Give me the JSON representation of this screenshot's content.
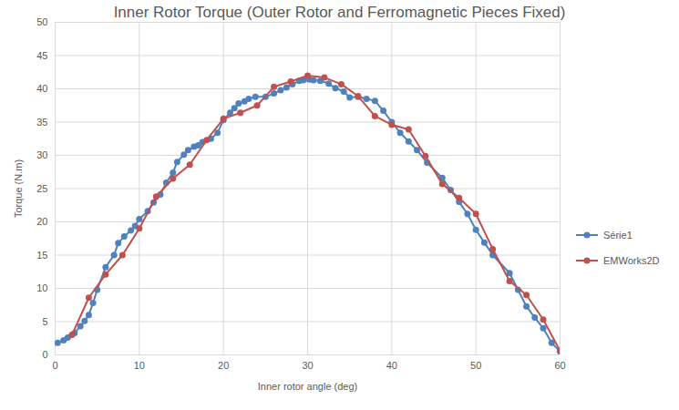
{
  "chart_data": {
    "type": "line",
    "title": "Inner Rotor Torque (Outer Rotor and Ferromagnetic Pieces Fixed)",
    "x_label": "Inner rotor angle (deg)",
    "y_label": "Torque (N.m)",
    "xlim": [
      0,
      60
    ],
    "xticks": [
      0,
      10,
      20,
      30,
      40,
      50,
      60
    ],
    "ylim": [
      0,
      50
    ],
    "yticks": [
      0,
      5,
      10,
      15,
      20,
      25,
      30,
      35,
      40,
      45,
      50
    ],
    "grid": true,
    "legend": "right",
    "series": [
      {
        "name": "Série1",
        "color": "#4f81bd",
        "marker": "circle",
        "x": [
          0.3,
          1,
          1.5,
          2.3,
          3,
          3.5,
          4,
          4.5,
          5,
          6,
          7,
          7.5,
          8.2,
          9,
          9.5,
          10,
          11,
          11.7,
          12.5,
          13.2,
          14,
          14.5,
          15.3,
          15.8,
          16.5,
          17,
          17.5,
          18.5,
          19.3,
          20,
          20.8,
          21.3,
          21.8,
          22.5,
          23,
          23.8,
          25,
          26,
          26.8,
          27.5,
          28.2,
          29,
          29.5,
          30.2,
          30.7,
          31.5,
          32.5,
          33.3,
          34.3,
          35,
          36,
          37,
          38,
          39,
          40,
          41,
          42,
          43,
          44.2,
          46,
          47,
          48,
          49,
          50,
          51,
          52,
          54,
          55,
          56,
          57,
          58,
          59,
          60
        ],
        "values": [
          1.8,
          2.2,
          2.6,
          3.3,
          4.3,
          5.1,
          6.0,
          7.8,
          9.8,
          13.2,
          15.0,
          16.8,
          17.8,
          18.7,
          19.4,
          20.4,
          21.6,
          22.9,
          24.1,
          25.9,
          27.4,
          29.0,
          30.1,
          30.8,
          31.3,
          31.5,
          32.0,
          32.5,
          33.4,
          35.3,
          36.4,
          37.1,
          37.8,
          38.1,
          38.5,
          38.8,
          38.8,
          39.3,
          39.8,
          40.2,
          40.7,
          41.2,
          41.3,
          41.4,
          41.3,
          41.2,
          40.8,
          40.1,
          39.6,
          38.7,
          38.8,
          38.5,
          38.2,
          36.7,
          35.0,
          33.4,
          32.1,
          30.8,
          28.9,
          26.6,
          24.8,
          23.0,
          21.2,
          18.8,
          16.9,
          15.0,
          12.3,
          9.8,
          7.3,
          5.6,
          4.0,
          1.8,
          0.5
        ]
      },
      {
        "name": "EMWorks2D",
        "color": "#c0504d",
        "marker": "circle",
        "x": [
          2,
          4,
          6,
          8,
          10,
          12,
          14,
          16,
          18,
          20,
          22,
          24,
          26,
          28,
          30,
          32,
          34,
          36,
          38,
          40,
          42,
          44,
          46,
          48,
          50,
          52,
          54,
          56,
          58,
          60
        ],
        "values": [
          3.0,
          8.6,
          12.1,
          15.0,
          19.0,
          23.8,
          26.5,
          28.6,
          32.3,
          35.5,
          36.4,
          37.5,
          40.3,
          41.1,
          42.0,
          41.7,
          40.7,
          38.9,
          35.9,
          34.6,
          33.9,
          29.9,
          25.7,
          23.6,
          21.2,
          15.9,
          11.1,
          9.0,
          5.3,
          0.6
        ]
      }
    ]
  }
}
